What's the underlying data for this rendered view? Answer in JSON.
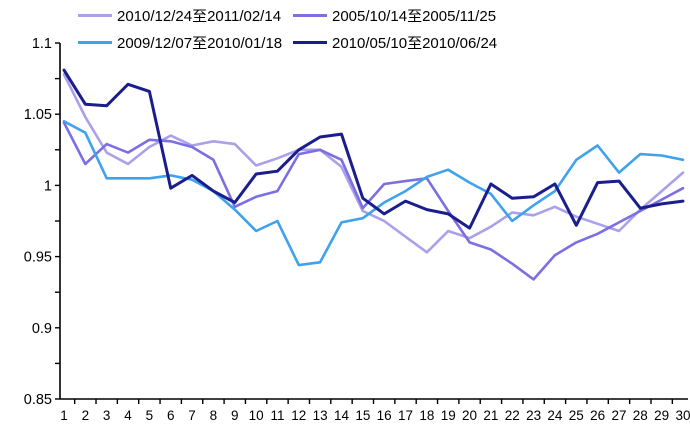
{
  "chart_data": {
    "type": "line",
    "title": "",
    "xlabel": "",
    "ylabel": "",
    "grid": false,
    "legend_position": "top",
    "ylim": [
      0.85,
      1.1
    ],
    "y_ticks": [
      0.85,
      0.9,
      0.95,
      1.0,
      1.05,
      1.1
    ],
    "y_tick_labels": [
      "0.85",
      "0.9",
      "0.95",
      "1",
      "1.05",
      "1.1"
    ],
    "y_minor_tick_step": 0.025,
    "x_categories": [
      "1",
      "2",
      "3",
      "4",
      "5",
      "6",
      "7",
      "8",
      "9",
      "10",
      "11",
      "12",
      "13",
      "14",
      "15",
      "16",
      "17",
      "18",
      "19",
      "20",
      "21",
      "22",
      "23",
      "24",
      "25",
      "26",
      "27",
      "28",
      "29",
      "30"
    ],
    "axis_color": "#000000",
    "series": [
      {
        "name": "2010/12/24至2011/02/14",
        "color": "#ABA0EA",
        "line_width": 2.6,
        "values": [
          1.078,
          1.048,
          1.023,
          1.015,
          1.027,
          1.035,
          1.028,
          1.031,
          1.029,
          1.014,
          1.019,
          1.025,
          1.025,
          1.013,
          0.982,
          0.975,
          0.964,
          0.953,
          0.968,
          0.963,
          0.971,
          0.981,
          0.979,
          0.985,
          0.978,
          0.973,
          0.968,
          0.983,
          0.996,
          1.009
        ]
      },
      {
        "name": "2005/10/14至2005/11/25",
        "color": "#7B6FE2",
        "line_width": 2.6,
        "values": [
          1.044,
          1.015,
          1.029,
          1.023,
          1.032,
          1.031,
          1.027,
          1.018,
          0.985,
          0.992,
          0.996,
          1.022,
          1.025,
          1.018,
          0.984,
          1.001,
          1.003,
          1.005,
          0.982,
          0.96,
          0.955,
          0.945,
          0.934,
          0.951,
          0.96,
          0.966,
          0.974,
          0.982,
          0.99,
          0.998
        ]
      },
      {
        "name": "2009/12/07至2010/01/18",
        "color": "#3FA2EC",
        "line_width": 2.6,
        "values": [
          1.045,
          1.037,
          1.005,
          1.005,
          1.005,
          1.007,
          1.004,
          0.996,
          0.983,
          0.968,
          0.975,
          0.944,
          0.946,
          0.974,
          0.977,
          0.988,
          0.996,
          1.006,
          1.011,
          1.002,
          0.994,
          0.975,
          0.986,
          0.996,
          1.018,
          1.028,
          1.009,
          1.022,
          1.021,
          1.018
        ]
      },
      {
        "name": "2010/05/10至2010/06/24",
        "color": "#1A1E8C",
        "line_width": 3.0,
        "values": [
          1.081,
          1.057,
          1.056,
          1.071,
          1.066,
          0.998,
          1.007,
          0.996,
          0.988,
          1.008,
          1.01,
          1.025,
          1.034,
          1.036,
          0.991,
          0.98,
          0.989,
          0.983,
          0.98,
          0.97,
          1.001,
          0.991,
          0.992,
          1.001,
          0.972,
          1.002,
          1.003,
          0.984,
          0.987,
          0.989
        ]
      }
    ]
  }
}
